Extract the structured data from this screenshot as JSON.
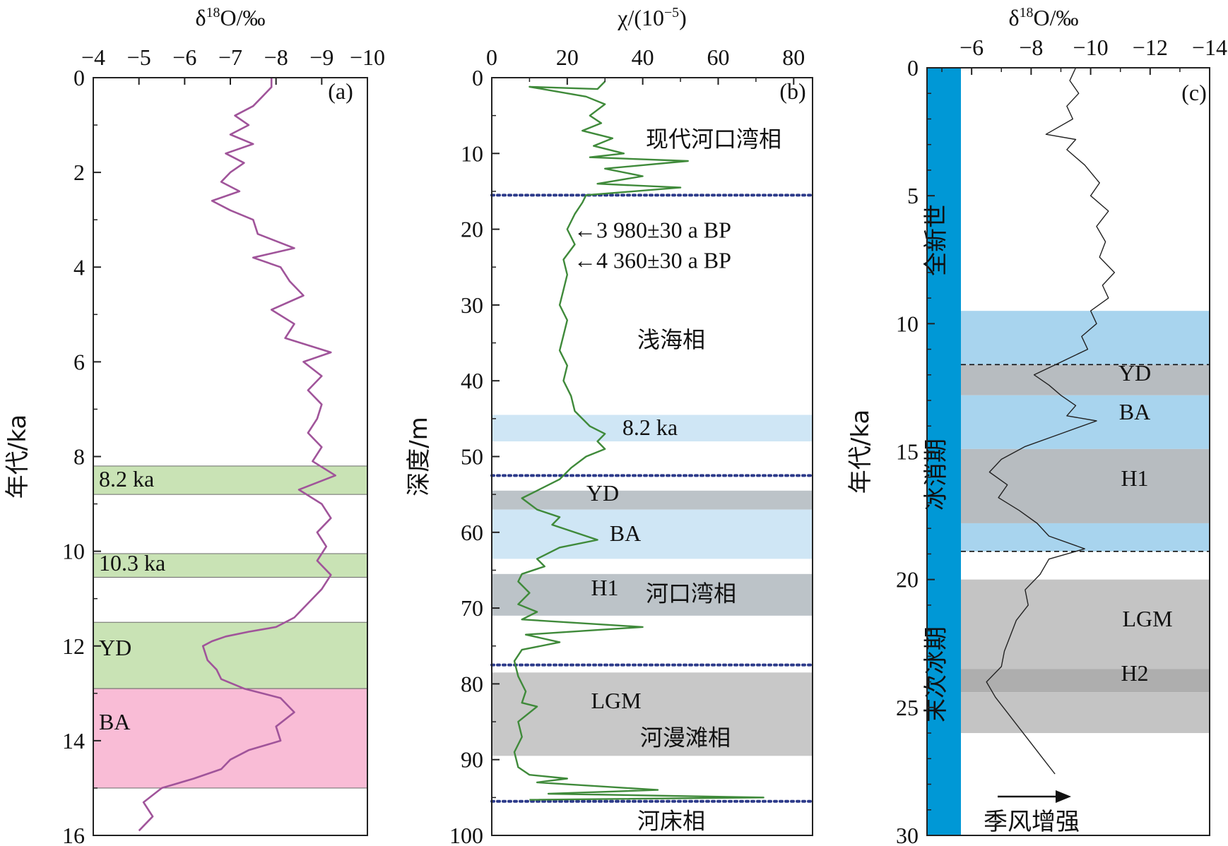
{
  "chart_data": [
    {
      "type": "line",
      "panel_label": "(a)",
      "xlabel": "δ18O/‰",
      "xlim": [
        -4,
        -10
      ],
      "x_ticks": [
        "−4",
        "−5",
        "−6",
        "−7",
        "−8",
        "−9",
        "−10"
      ],
      "ylabel": "年代/ka",
      "ylim": [
        0,
        16
      ],
      "y_ticks": [
        "0",
        "2",
        "4",
        "6",
        "8",
        "10",
        "12",
        "14",
        "16"
      ],
      "line_color": "#a0549a",
      "series": [
        {
          "points": [
            [
              -7.9,
              0.0
            ],
            [
              -7.9,
              0.2
            ],
            [
              -7.7,
              0.4
            ],
            [
              -7.5,
              0.6
            ],
            [
              -7.1,
              0.8
            ],
            [
              -7.4,
              1.0
            ],
            [
              -7.0,
              1.2
            ],
            [
              -7.5,
              1.4
            ],
            [
              -6.9,
              1.6
            ],
            [
              -7.3,
              1.8
            ],
            [
              -7.0,
              2.0
            ],
            [
              -6.8,
              2.2
            ],
            [
              -7.2,
              2.4
            ],
            [
              -6.6,
              2.6
            ],
            [
              -7.0,
              2.8
            ],
            [
              -7.5,
              3.0
            ],
            [
              -7.6,
              3.3
            ],
            [
              -8.4,
              3.6
            ],
            [
              -7.5,
              3.8
            ],
            [
              -8.1,
              4.0
            ],
            [
              -8.3,
              4.3
            ],
            [
              -8.6,
              4.6
            ],
            [
              -7.9,
              4.9
            ],
            [
              -8.4,
              5.2
            ],
            [
              -8.2,
              5.5
            ],
            [
              -9.2,
              5.8
            ],
            [
              -8.6,
              6.0
            ],
            [
              -9.0,
              6.3
            ],
            [
              -8.7,
              6.6
            ],
            [
              -9.0,
              6.9
            ],
            [
              -8.9,
              7.2
            ],
            [
              -8.7,
              7.5
            ],
            [
              -9.0,
              7.8
            ],
            [
              -8.8,
              8.1
            ],
            [
              -9.3,
              8.4
            ],
            [
              -8.5,
              8.7
            ],
            [
              -9.0,
              9.0
            ],
            [
              -9.2,
              9.3
            ],
            [
              -8.9,
              9.6
            ],
            [
              -9.1,
              9.9
            ],
            [
              -8.9,
              10.2
            ],
            [
              -9.2,
              10.5
            ],
            [
              -9.0,
              10.8
            ],
            [
              -8.7,
              11.1
            ],
            [
              -8.4,
              11.4
            ],
            [
              -8.0,
              11.6
            ],
            [
              -7.4,
              11.7
            ],
            [
              -6.9,
              11.8
            ],
            [
              -6.6,
              11.9
            ],
            [
              -6.4,
              12.0
            ],
            [
              -6.5,
              12.3
            ],
            [
              -6.7,
              12.5
            ],
            [
              -6.8,
              12.7
            ],
            [
              -7.3,
              12.9
            ],
            [
              -8.1,
              13.1
            ],
            [
              -8.4,
              13.4
            ],
            [
              -8.0,
              13.7
            ],
            [
              -8.1,
              14.0
            ],
            [
              -7.4,
              14.2
            ],
            [
              -7.0,
              14.4
            ],
            [
              -6.8,
              14.6
            ],
            [
              -6.2,
              14.8
            ],
            [
              -5.5,
              15.0
            ],
            [
              -5.1,
              15.3
            ],
            [
              -5.3,
              15.6
            ],
            [
              -5.0,
              15.9
            ]
          ]
        }
      ],
      "bands": [
        {
          "label": "8.2 ka",
          "range": [
            8.2,
            8.8
          ],
          "color": "#c9e3b5"
        },
        {
          "label": "10.3 ka",
          "range": [
            10.05,
            10.55
          ],
          "color": "#c9e3b5"
        },
        {
          "label": "YD",
          "range": [
            11.5,
            12.9
          ],
          "color": "#c9e3b5"
        },
        {
          "label": "BA",
          "range": [
            12.9,
            15.0
          ],
          "color": "#f9bcd6"
        }
      ]
    },
    {
      "type": "line",
      "panel_label": "(b)",
      "xlabel": "χ/(10−5)",
      "xlim": [
        0,
        85
      ],
      "x_ticks": [
        "0",
        "20",
        "40",
        "60",
        "80"
      ],
      "ylabel": "深度/m",
      "ylim": [
        0,
        100
      ],
      "y_ticks": [
        "0",
        "10",
        "20",
        "30",
        "40",
        "50",
        "60",
        "70",
        "80",
        "90",
        "100"
      ],
      "line_color": "#3f8a3a",
      "series": [
        {
          "points": [
            [
              30,
              0.5
            ],
            [
              28,
              1.5
            ],
            [
              10,
              1.2
            ],
            [
              25,
              2.5
            ],
            [
              30,
              3.5
            ],
            [
              26,
              5.0
            ],
            [
              29,
              6.0
            ],
            [
              24,
              7.0
            ],
            [
              32,
              8.0
            ],
            [
              27,
              9.0
            ],
            [
              35,
              10.0
            ],
            [
              26,
              10.5
            ],
            [
              52,
              11.0
            ],
            [
              30,
              12.0
            ],
            [
              40,
              13.0
            ],
            [
              28,
              14.0
            ],
            [
              50,
              14.5
            ],
            [
              25,
              15.5
            ],
            [
              24,
              16.5
            ],
            [
              22,
              18.0
            ],
            [
              20,
              20.0
            ],
            [
              22,
              22.0
            ],
            [
              19,
              24.0
            ],
            [
              20,
              26.0
            ],
            [
              19,
              28.0
            ],
            [
              18,
              30.0
            ],
            [
              20,
              32.0
            ],
            [
              19,
              34.0
            ],
            [
              18,
              36.0
            ],
            [
              20,
              38.0
            ],
            [
              19,
              40.0
            ],
            [
              21,
              42.0
            ],
            [
              22,
              44.0
            ],
            [
              26,
              46.0
            ],
            [
              30,
              47.0
            ],
            [
              28,
              48.0
            ],
            [
              30,
              49.0
            ],
            [
              25,
              50.0
            ],
            [
              21,
              51.5
            ],
            [
              18,
              53.0
            ],
            [
              12,
              54.5
            ],
            [
              8,
              55.5
            ],
            [
              12,
              57.0
            ],
            [
              18,
              58.0
            ],
            [
              16,
              59.0
            ],
            [
              28,
              61.0
            ],
            [
              18,
              62.0
            ],
            [
              12,
              63.5
            ],
            [
              14,
              64.5
            ],
            [
              8,
              65.5
            ],
            [
              7,
              66.5
            ],
            [
              10,
              68.0
            ],
            [
              7,
              69.5
            ],
            [
              12,
              70.5
            ],
            [
              8,
              71.5
            ],
            [
              40,
              72.5
            ],
            [
              9,
              73.5
            ],
            [
              18,
              74.5
            ],
            [
              8,
              75.5
            ],
            [
              6,
              77.0
            ],
            [
              7,
              79.0
            ],
            [
              9,
              81.0
            ],
            [
              8,
              82.5
            ],
            [
              12,
              83.0
            ],
            [
              7,
              85.0
            ],
            [
              8,
              87.0
            ],
            [
              6,
              89.0
            ],
            [
              7,
              91.0
            ],
            [
              10,
              92.0
            ],
            [
              20,
              92.5
            ],
            [
              12,
              93.0
            ],
            [
              44,
              94.0
            ],
            [
              15,
              94.5
            ],
            [
              72,
              95.0
            ],
            [
              10,
              95.3
            ]
          ]
        }
      ],
      "dotted_lines": [
        15.5,
        52.5,
        77.5,
        95.5
      ],
      "bands": [
        {
          "label": "8.2 ka",
          "range": [
            44.5,
            48.0
          ],
          "color": "#cfe6f5"
        },
        {
          "label": "YD",
          "range": [
            54.5,
            57.0
          ],
          "color": "#bcc3c8"
        },
        {
          "label": "BA",
          "range": [
            57.0,
            63.5
          ],
          "color": "#cfe6f5"
        },
        {
          "label": "H1",
          "range": [
            65.5,
            71.0
          ],
          "color": "#bcc3c8"
        },
        {
          "label": "LGM",
          "range": [
            78.5,
            89.5
          ],
          "color": "#c8c8c8"
        }
      ],
      "annotations": [
        {
          "text": "现代河口湾相",
          "depth": 8.0
        },
        {
          "text": "←3 980±30 a BP",
          "depth": 20.0
        },
        {
          "text": "←4 360±30 a BP",
          "depth": 24.0
        },
        {
          "text": "浅海相",
          "depth": 34.5
        },
        {
          "text": "河口湾相",
          "depth": 68.0
        },
        {
          "text": "河漫滩相",
          "depth": 87.0
        },
        {
          "text": "河床相",
          "depth": 98.0
        }
      ]
    },
    {
      "type": "line",
      "panel_label": "(c)",
      "xlabel": "δ18O/‰",
      "xlim": [
        -4.5,
        -14
      ],
      "x_ticks": [
        "−6",
        "−8",
        "−10",
        "−12",
        "−14"
      ],
      "ylabel": "年代/ka",
      "ylim": [
        0,
        30
      ],
      "y_ticks": [
        "0",
        "5",
        "10",
        "15",
        "20",
        "25",
        "30"
      ],
      "line_color": "#222222",
      "series": [
        {
          "points": [
            [
              -9.5,
              0.0
            ],
            [
              -9.3,
              0.5
            ],
            [
              -9.6,
              1.0
            ],
            [
              -9.2,
              1.5
            ],
            [
              -9.4,
              2.0
            ],
            [
              -8.5,
              2.6
            ],
            [
              -9.5,
              2.8
            ],
            [
              -9.2,
              3.2
            ],
            [
              -9.8,
              3.8
            ],
            [
              -10.3,
              4.5
            ],
            [
              -10.0,
              5.0
            ],
            [
              -10.6,
              5.6
            ],
            [
              -10.2,
              6.2
            ],
            [
              -10.5,
              6.8
            ],
            [
              -10.3,
              7.4
            ],
            [
              -10.8,
              8.0
            ],
            [
              -10.4,
              8.5
            ],
            [
              -10.6,
              9.0
            ],
            [
              -10.0,
              9.5
            ],
            [
              -10.2,
              10.0
            ],
            [
              -9.7,
              10.5
            ],
            [
              -9.9,
              11.0
            ],
            [
              -9.0,
              11.5
            ],
            [
              -8.1,
              12.0
            ],
            [
              -8.6,
              12.4
            ],
            [
              -9.0,
              12.8
            ],
            [
              -9.5,
              13.2
            ],
            [
              -9.2,
              13.6
            ],
            [
              -10.2,
              13.8
            ],
            [
              -9.0,
              14.3
            ],
            [
              -7.8,
              14.8
            ],
            [
              -7.0,
              15.3
            ],
            [
              -6.6,
              15.8
            ],
            [
              -7.2,
              16.3
            ],
            [
              -6.9,
              16.8
            ],
            [
              -7.6,
              17.3
            ],
            [
              -8.2,
              17.8
            ],
            [
              -8.6,
              18.3
            ],
            [
              -9.8,
              18.8
            ],
            [
              -8.6,
              19.2
            ],
            [
              -8.3,
              19.8
            ],
            [
              -7.8,
              20.4
            ],
            [
              -7.9,
              21.0
            ],
            [
              -7.5,
              21.6
            ],
            [
              -7.3,
              22.2
            ],
            [
              -7.1,
              22.8
            ],
            [
              -7.0,
              23.4
            ],
            [
              -6.5,
              24.0
            ],
            [
              -6.8,
              24.6
            ],
            [
              -7.2,
              25.2
            ],
            [
              -7.6,
              25.8
            ],
            [
              -8.0,
              26.4
            ],
            [
              -8.4,
              27.0
            ],
            [
              -8.8,
              27.6
            ]
          ]
        }
      ],
      "dashed_lines": [
        11.6,
        18.9
      ],
      "bands": [
        {
          "label": "",
          "range": [
            9.5,
            11.6
          ],
          "color": "#a8d4ee"
        },
        {
          "label": "YD",
          "range": [
            11.6,
            12.8
          ],
          "color": "#b7bcc0"
        },
        {
          "label": "BA",
          "range": [
            12.8,
            14.9
          ],
          "color": "#a8d4ee"
        },
        {
          "label": "H1",
          "range": [
            14.9,
            17.8
          ],
          "color": "#b7bcc0"
        },
        {
          "label": "",
          "range": [
            17.8,
            18.9
          ],
          "color": "#a8d4ee"
        },
        {
          "label": "LGM",
          "range": [
            20.0,
            23.5
          ],
          "color": "#c4c4c4"
        },
        {
          "label": "H2",
          "range": [
            23.5,
            24.4
          ],
          "color": "#aeaeae"
        },
        {
          "label": "",
          "range": [
            24.4,
            26.0
          ],
          "color": "#c4c4c4"
        }
      ],
      "period_bar_color": "#0098d6",
      "periods": [
        "全新世",
        "冰消期",
        "末次冰期"
      ],
      "arrow_label": "季风增强"
    }
  ]
}
